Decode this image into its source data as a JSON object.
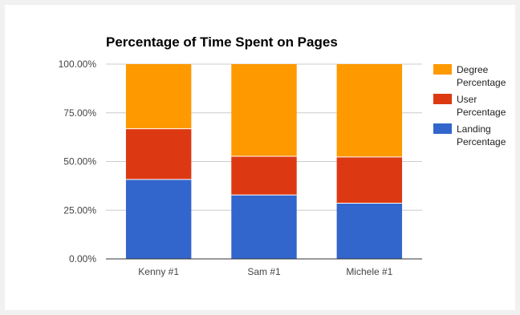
{
  "chart_data": {
    "type": "bar",
    "stacked": true,
    "title": "Percentage of Time Spent on Pages",
    "categories": [
      "Kenny #1",
      "Sam #1",
      "Michele #1"
    ],
    "series": [
      {
        "name": "Landing Percentage",
        "name_lines": [
          "Landing",
          "Percentage"
        ],
        "color": "#3366cc",
        "values": [
          40.8,
          32.8,
          28.6
        ]
      },
      {
        "name": "User Percentage",
        "name_lines": [
          "User",
          "Percentage"
        ],
        "color": "#dc3912",
        "values": [
          26.0,
          19.9,
          23.7
        ]
      },
      {
        "name": "Degree Percentage",
        "name_lines": [
          "Degree",
          "Percentage"
        ],
        "color": "#ff9900",
        "values": [
          33.2,
          47.3,
          47.7
        ]
      }
    ],
    "y_ticks": [
      "0.00%",
      "25.00%",
      "50.00%",
      "75.00%",
      "100.00%"
    ],
    "ylim": [
      0,
      100
    ],
    "grid": true,
    "legend": "right"
  }
}
